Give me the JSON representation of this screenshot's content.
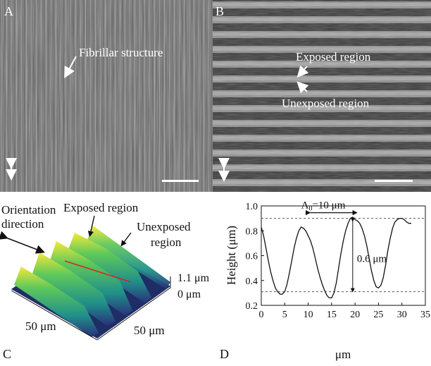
{
  "panels": {
    "a": {
      "letter": "A",
      "annotation": "Fibrillar structure"
    },
    "b": {
      "letter": "B",
      "annotation_exposed": "Exposed region",
      "annotation_unexposed": "Unexposed region"
    },
    "c": {
      "letter": "C",
      "orientation_line1": "Orientation",
      "orientation_line2": "direction",
      "exposed_label": "Exposed region",
      "unexposed_line1": "Unexposed",
      "unexposed_line2": "region",
      "height_top": "1.1 μm",
      "height_bottom": "0 μm",
      "dim_left": "50 μm",
      "dim_right": "50 μm"
    },
    "d": {
      "letter": "D",
      "period_label": "Λ",
      "period_sub": "0",
      "period_value": "=10 μm",
      "amplitude_label": "0.6 μm"
    }
  },
  "chart_data": {
    "type": "line",
    "title": "",
    "xlabel": "μm",
    "ylabel": "Height (μm)",
    "xlim": [
      0,
      35
    ],
    "ylim": [
      0.2,
      1.0
    ],
    "xticks": [
      0,
      5,
      10,
      15,
      20,
      25,
      30,
      35
    ],
    "yticks": [
      0.2,
      0.4,
      0.6,
      0.8,
      1.0
    ],
    "ytick_labels": [
      "0.2",
      "0.4",
      "0.6",
      "0.8",
      "1.0"
    ],
    "reference_lines_y": [
      0.9,
      0.31
    ],
    "series": [
      {
        "x": [
          0,
          0.5,
          1,
          1.5,
          2,
          2.5,
          3,
          3.5,
          4,
          4.5,
          5,
          5.5,
          6,
          6.5,
          7,
          7.5,
          8,
          8.5,
          9,
          9.5,
          10,
          10.5,
          11,
          11.5,
          12,
          12.5,
          13,
          13.5,
          14,
          14.5,
          15,
          15.5,
          16,
          16.5,
          17,
          17.5,
          18,
          18.5,
          19,
          19.5,
          20,
          20.5,
          21,
          21.5,
          22,
          22.5,
          23,
          23.5,
          24,
          24.5,
          25,
          25.5,
          26,
          26.5,
          27,
          27.5,
          28,
          28.5,
          29,
          29.5,
          30,
          30.5,
          31,
          31.5,
          32
        ],
        "values": [
          0.83,
          0.76,
          0.66,
          0.56,
          0.47,
          0.4,
          0.34,
          0.31,
          0.29,
          0.29,
          0.31,
          0.37,
          0.46,
          0.56,
          0.66,
          0.74,
          0.8,
          0.83,
          0.82,
          0.8,
          0.76,
          0.72,
          0.66,
          0.58,
          0.5,
          0.43,
          0.37,
          0.32,
          0.28,
          0.26,
          0.26,
          0.3,
          0.38,
          0.5,
          0.62,
          0.72,
          0.8,
          0.86,
          0.9,
          0.91,
          0.89,
          0.88,
          0.86,
          0.82,
          0.76,
          0.68,
          0.58,
          0.48,
          0.4,
          0.35,
          0.34,
          0.36,
          0.42,
          0.52,
          0.64,
          0.74,
          0.82,
          0.87,
          0.89,
          0.9,
          0.9,
          0.89,
          0.87,
          0.86,
          0.86
        ]
      }
    ]
  }
}
